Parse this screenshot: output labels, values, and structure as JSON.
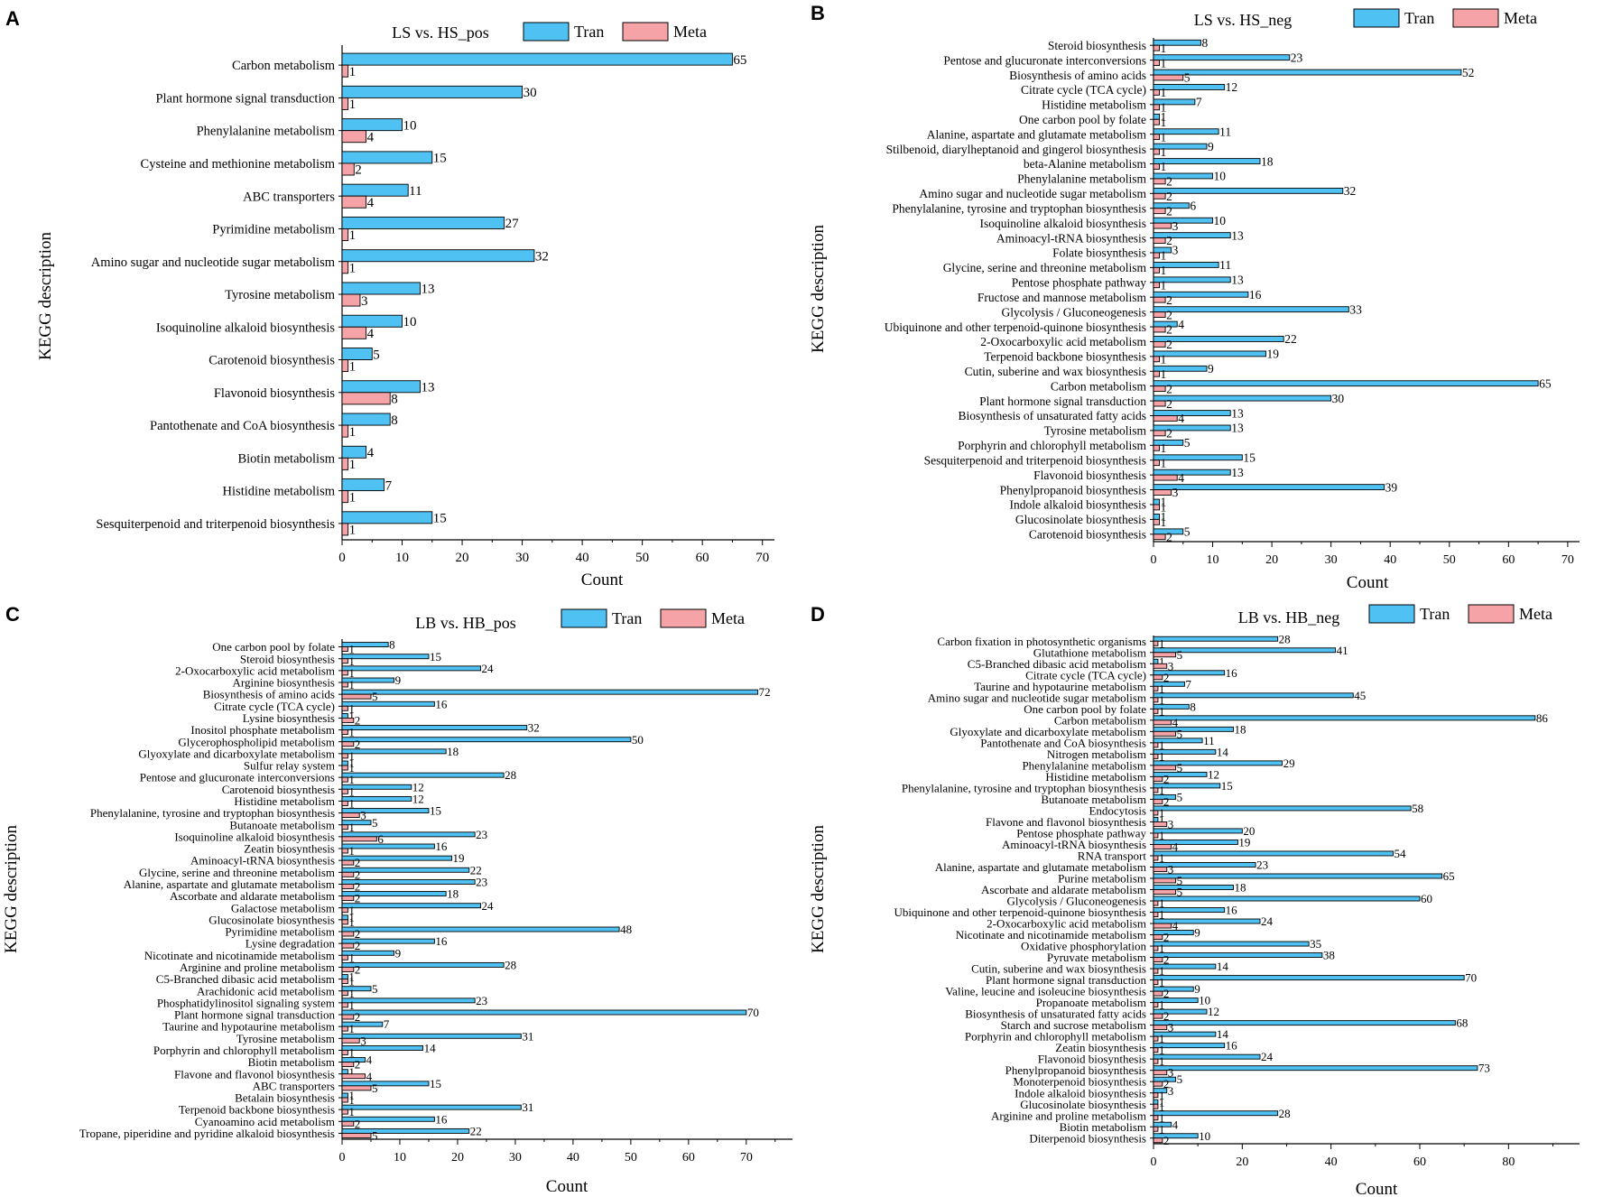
{
  "colors": {
    "tran": "#4FC1F2",
    "meta": "#F5A3A6",
    "axis": "#000000"
  },
  "legend": {
    "tran": "Tran",
    "meta": "Meta"
  },
  "chart_data": [
    {
      "panel": "A",
      "type": "bar",
      "orientation": "horizontal",
      "title": "LS vs. HS_pos",
      "xlabel": "Count",
      "ylabel": "KEGG description",
      "xlim": [
        0,
        72
      ],
      "xticks": [
        0,
        10,
        20,
        30,
        40,
        50,
        60,
        70
      ],
      "grid": false,
      "legend": "top",
      "categories": [
        "Carbon metabolism",
        "Plant hormone signal transduction",
        "Phenylalanine metabolism",
        "Cysteine and methionine metabolism",
        "ABC transporters",
        "Pyrimidine metabolism",
        "Amino sugar and nucleotide sugar metabolism",
        "Tyrosine metabolism",
        "Isoquinoline alkaloid biosynthesis",
        "Carotenoid biosynthesis",
        "Flavonoid biosynthesis",
        "Pantothenate and CoA biosynthesis",
        "Biotin metabolism",
        "Histidine metabolism",
        "Sesquiterpenoid and triterpenoid biosynthesis"
      ],
      "series": [
        {
          "name": "Tran",
          "values": [
            65,
            30,
            10,
            15,
            11,
            27,
            32,
            13,
            10,
            5,
            13,
            8,
            4,
            7,
            15
          ]
        },
        {
          "name": "Meta",
          "values": [
            1,
            1,
            4,
            2,
            4,
            1,
            1,
            3,
            4,
            1,
            8,
            1,
            1,
            1,
            1
          ]
        }
      ]
    },
    {
      "panel": "B",
      "type": "bar",
      "orientation": "horizontal",
      "title": "LS vs. HS_neg",
      "xlabel": "Count",
      "ylabel": "KEGG description",
      "xlim": [
        0,
        72
      ],
      "xticks": [
        0,
        10,
        20,
        30,
        40,
        50,
        60,
        70
      ],
      "grid": false,
      "legend": "top",
      "categories": [
        "Steroid biosynthesis",
        "Pentose and glucuronate interconversions",
        "Biosynthesis of amino acids",
        "Citrate cycle (TCA cycle)",
        "Histidine metabolism",
        "One carbon pool by folate",
        "Alanine, aspartate and glutamate metabolism",
        "Stilbenoid, diarylheptanoid and gingerol biosynthesis",
        "beta-Alanine metabolism",
        "Phenylalanine metabolism",
        "Amino sugar and nucleotide sugar metabolism",
        "Phenylalanine, tyrosine and tryptophan biosynthesis",
        "Isoquinoline alkaloid biosynthesis",
        "Aminoacyl-tRNA biosynthesis",
        "Folate biosynthesis",
        "Glycine, serine and threonine metabolism",
        "Pentose phosphate pathway",
        "Fructose and mannose metabolism",
        "Glycolysis / Gluconeogenesis",
        "Ubiquinone and other terpenoid-quinone biosynthesis",
        "2-Oxocarboxylic acid metabolism",
        "Terpenoid backbone biosynthesis",
        "Cutin, suberine and wax biosynthesis",
        "Carbon metabolism",
        "Plant hormone signal transduction",
        "Biosynthesis of unsaturated fatty acids",
        "Tyrosine metabolism",
        "Porphyrin and chlorophyll metabolism",
        "Sesquiterpenoid and triterpenoid biosynthesis",
        "Flavonoid biosynthesis",
        "Phenylpropanoid biosynthesis",
        "Indole alkaloid biosynthesis",
        "Glucosinolate biosynthesis",
        "Carotenoid biosynthesis"
      ],
      "series": [
        {
          "name": "Tran",
          "values": [
            8,
            23,
            52,
            12,
            7,
            1,
            11,
            9,
            18,
            10,
            32,
            6,
            10,
            13,
            3,
            11,
            13,
            16,
            33,
            4,
            22,
            19,
            9,
            65,
            30,
            13,
            13,
            5,
            15,
            13,
            39,
            1,
            1,
            5
          ]
        },
        {
          "name": "Meta",
          "values": [
            1,
            1,
            5,
            1,
            1,
            1,
            1,
            1,
            1,
            2,
            2,
            2,
            3,
            2,
            1,
            1,
            1,
            2,
            2,
            2,
            2,
            1,
            1,
            2,
            2,
            4,
            2,
            1,
            1,
            4,
            3,
            1,
            1,
            2
          ]
        }
      ]
    },
    {
      "panel": "C",
      "type": "bar",
      "orientation": "horizontal",
      "title": "LB vs. HB_pos",
      "xlabel": "Count",
      "ylabel": "KEGG description",
      "xlim": [
        0,
        78
      ],
      "xticks": [
        0,
        10,
        20,
        30,
        40,
        50,
        60,
        70
      ],
      "grid": false,
      "legend": "top",
      "categories": [
        "One carbon pool by folate",
        "Steroid biosynthesis",
        "2-Oxocarboxylic acid metabolism",
        "Arginine biosynthesis",
        "Biosynthesis of amino acids",
        "Citrate cycle (TCA cycle)",
        "Lysine biosynthesis",
        "Inositol phosphate metabolism",
        "Glycerophospholipid metabolism",
        "Glyoxylate and dicarboxylate metabolism",
        "Sulfur relay system",
        "Pentose and glucuronate interconversions",
        "Carotenoid biosynthesis",
        "Histidine metabolism",
        "Phenylalanine, tyrosine and tryptophan biosynthesis",
        "Butanoate metabolism",
        "Isoquinoline alkaloid biosynthesis",
        "Zeatin biosynthesis",
        "Aminoacyl-tRNA biosynthesis",
        "Glycine, serine and threonine metabolism",
        "Alanine, aspartate and glutamate metabolism",
        "Ascorbate and aldarate metabolism",
        "Galactose metabolism",
        "Glucosinolate biosynthesis",
        "Pyrimidine metabolism",
        "Lysine degradation",
        "Nicotinate and nicotinamide metabolism",
        "Arginine and proline metabolism",
        "C5-Branched dibasic acid metabolism",
        "Arachidonic acid metabolism",
        "Phosphatidylinositol signaling system",
        "Plant hormone signal transduction",
        "Taurine and hypotaurine metabolism",
        "Tyrosine metabolism",
        "Porphyrin and chlorophyll metabolism",
        "Biotin metabolism",
        "Flavone and flavonol biosynthesis",
        "ABC transporters",
        "Betalain biosynthesis",
        "Terpenoid backbone biosynthesis",
        "Cyanoamino acid metabolism",
        "Tropane, piperidine and pyridine alkaloid biosynthesis"
      ],
      "series": [
        {
          "name": "Tran",
          "values": [
            8,
            15,
            24,
            9,
            72,
            16,
            1,
            32,
            50,
            18,
            1,
            28,
            12,
            12,
            15,
            5,
            23,
            16,
            19,
            22,
            23,
            18,
            24,
            1,
            48,
            16,
            9,
            28,
            1,
            5,
            23,
            70,
            7,
            31,
            14,
            4,
            1,
            15,
            1,
            31,
            16,
            22
          ]
        },
        {
          "name": "Meta",
          "values": [
            1,
            1,
            1,
            1,
            5,
            1,
            2,
            1,
            2,
            1,
            1,
            1,
            1,
            1,
            3,
            1,
            6,
            1,
            2,
            2,
            2,
            2,
            1,
            1,
            2,
            2,
            1,
            2,
            1,
            1,
            1,
            2,
            1,
            3,
            1,
            2,
            4,
            5,
            1,
            1,
            2,
            5
          ]
        }
      ]
    },
    {
      "panel": "D",
      "type": "bar",
      "orientation": "horizontal",
      "title": "LB vs. HB_neg",
      "xlabel": "Count",
      "ylabel": "KEGG description",
      "xlim": [
        0,
        96
      ],
      "xticks": [
        0,
        20,
        40,
        60,
        80
      ],
      "grid": false,
      "legend": "top",
      "categories": [
        "Carbon fixation in photosynthetic organisms",
        "Glutathione metabolism",
        "C5-Branched dibasic acid metabolism",
        "Citrate cycle (TCA cycle)",
        "Taurine and hypotaurine metabolism",
        "Amino sugar and nucleotide sugar metabolism",
        "One carbon pool by folate",
        "Carbon metabolism",
        "Glyoxylate and dicarboxylate metabolism",
        "Pantothenate and CoA biosynthesis",
        "Nitrogen metabolism",
        "Phenylalanine metabolism",
        "Histidine metabolism",
        "Phenylalanine, tyrosine and tryptophan biosynthesis",
        "Butanoate metabolism",
        "Endocytosis",
        "Flavone and flavonol biosynthesis",
        "Pentose phosphate pathway",
        "Aminoacyl-tRNA biosynthesis",
        "RNA transport",
        "Alanine, aspartate and glutamate metabolism",
        "Purine metabolism",
        "Ascorbate and aldarate metabolism",
        "Glycolysis / Gluconeogenesis",
        "Ubiquinone and other terpenoid-quinone biosynthesis",
        "2-Oxocarboxylic acid metabolism",
        "Nicotinate and nicotinamide metabolism",
        "Oxidative phosphorylation",
        "Pyruvate metabolism",
        "Cutin, suberine and wax biosynthesis",
        "Plant hormone signal transduction",
        "Valine, leucine and isoleucine biosynthesis",
        "Propanoate metabolism",
        "Biosynthesis of unsaturated fatty acids",
        "Starch and sucrose metabolism",
        "Porphyrin and chlorophyll metabolism",
        "Zeatin biosynthesis",
        "Flavonoid biosynthesis",
        "Phenylpropanoid biosynthesis",
        "Monoterpenoid biosynthesis",
        "Indole alkaloid biosynthesis",
        "Glucosinolate biosynthesis",
        "Arginine and proline metabolism",
        "Biotin metabolism",
        "Diterpenoid biosynthesis"
      ],
      "series": [
        {
          "name": "Tran",
          "values": [
            28,
            41,
            1,
            16,
            7,
            45,
            8,
            86,
            18,
            11,
            14,
            29,
            12,
            15,
            5,
            58,
            1,
            20,
            19,
            54,
            23,
            65,
            18,
            60,
            16,
            24,
            9,
            35,
            38,
            14,
            70,
            9,
            10,
            12,
            68,
            14,
            16,
            24,
            73,
            5,
            3,
            1,
            28,
            4,
            10
          ]
        },
        {
          "name": "Meta",
          "values": [
            1,
            5,
            3,
            2,
            1,
            1,
            1,
            4,
            5,
            1,
            1,
            5,
            2,
            1,
            2,
            1,
            3,
            1,
            4,
            1,
            3,
            5,
            5,
            1,
            1,
            4,
            2,
            1,
            2,
            1,
            1,
            2,
            1,
            2,
            3,
            1,
            1,
            1,
            3,
            2,
            1,
            1,
            1,
            1,
            2
          ]
        }
      ]
    }
  ]
}
